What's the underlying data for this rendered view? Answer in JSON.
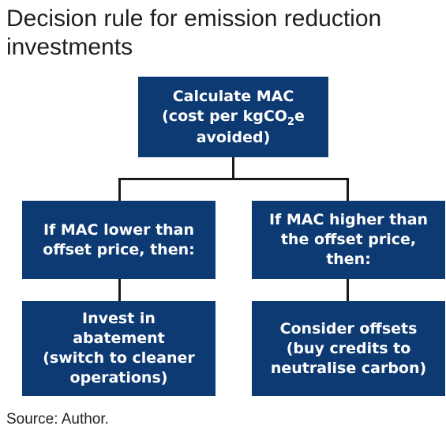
{
  "title": {
    "line1": "Decision rule for emission reduction",
    "line2": "investments"
  },
  "nodes": {
    "top": {
      "line1": "Calculate MAC",
      "line2_pre": "(cost per kgCO",
      "line2_sub": "2",
      "line2_post": "e",
      "line3": "avoided)"
    },
    "left_mid": {
      "line1": "If MAC lower than",
      "line2": "offset price, then:"
    },
    "right_mid": {
      "line1": "If MAC higher than",
      "line2": "the offset price,",
      "line3": "then:"
    },
    "left_bot": {
      "line1": "Invest in",
      "line2": "abatement",
      "line3": "(switch to cleaner",
      "line4": "operations)"
    },
    "right_bot": {
      "line1": "Consider offsets",
      "line2": "(buy credits to",
      "line3": "neutralise carbon)"
    }
  },
  "source": "Source: Author.",
  "colors": {
    "box_fill": "#0d3a73",
    "box_text": "#ffffff",
    "connector": "#1a1a1a",
    "title_text": "#1f1f1f"
  }
}
